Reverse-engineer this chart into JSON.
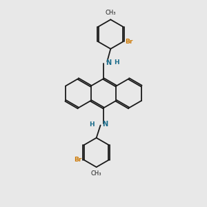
{
  "bg_color": "#e8e8e8",
  "bond_color": "#1a1a1a",
  "N_color": "#1a6b8a",
  "Br_color": "#cc7700",
  "figsize": [
    3.0,
    3.0
  ],
  "dpi": 100,
  "lw": 1.3,
  "dbl_off": 0.035,
  "ring_r": 0.72,
  "xlim": [
    0,
    10
  ],
  "ylim": [
    0,
    10
  ]
}
